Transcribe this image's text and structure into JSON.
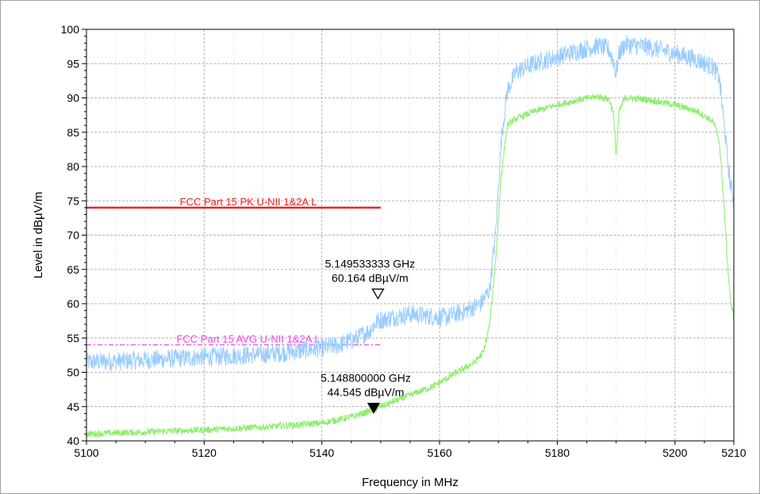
{
  "colors": {
    "background": "#ffffff",
    "frame_border": "#a0a0a0",
    "grid": "#b4b4b4",
    "peak_trace": "#99ccff",
    "avg_trace": "#88ee66",
    "pk_limit": "#ee2222",
    "avg_limit": "#ee44ee"
  },
  "chart_data": {
    "type": "line",
    "xlabel": "Frequency in MHz",
    "ylabel": "Level in dBµV/m",
    "xlim": [
      5100,
      5210
    ],
    "ylim": [
      40,
      100
    ],
    "x_ticks": [
      5100,
      5120,
      5140,
      5160,
      5180,
      5200,
      5210
    ],
    "y_ticks": [
      40,
      45,
      50,
      55,
      60,
      65,
      70,
      75,
      80,
      85,
      90,
      95,
      100
    ],
    "grid": true,
    "series": [
      {
        "role": "peak",
        "color": "#99ccff",
        "x": [
          5100,
          5105,
          5110,
          5115,
          5120,
          5125,
          5130,
          5135,
          5140,
          5143,
          5146,
          5148,
          5149.5,
          5152,
          5155,
          5158,
          5161,
          5164,
          5167,
          5168.5,
          5169.5,
          5170.5,
          5171.5,
          5173,
          5176,
          5180,
          5184,
          5187,
          5188.8,
          5189.5,
          5190,
          5190.5,
          5191.5,
          5195,
          5200,
          5204,
          5206.5,
          5207.5,
          5208.5,
          5209.3,
          5210
        ],
        "y": [
          51.5,
          51.6,
          51.8,
          52.0,
          52.2,
          52.4,
          52.6,
          53.0,
          53.5,
          54.0,
          55.0,
          56.0,
          57.5,
          58.0,
          58.5,
          58.2,
          58.0,
          58.8,
          60.0,
          62.0,
          70.0,
          84.0,
          91.0,
          93.8,
          95.0,
          96.0,
          97.0,
          97.6,
          97.0,
          95.5,
          93.5,
          96.5,
          97.8,
          97.5,
          96.5,
          95.5,
          94.5,
          93.0,
          85.0,
          78.0,
          75.0
        ]
      },
      {
        "role": "average",
        "color": "#88ee66",
        "x": [
          5100,
          5110,
          5120,
          5130,
          5140,
          5145,
          5148.8,
          5150,
          5153,
          5156,
          5159,
          5162,
          5164,
          5166,
          5167.5,
          5168.5,
          5169.5,
          5170.5,
          5171.5,
          5173,
          5176,
          5180,
          5184,
          5187,
          5188.8,
          5189.5,
          5190,
          5190.5,
          5191.5,
          5195,
          5200,
          5204,
          5206.5,
          5207.5,
          5208.3,
          5208.9,
          5209.5,
          5210
        ],
        "y": [
          41.0,
          41.3,
          41.6,
          42.0,
          42.6,
          43.5,
          44.5,
          45.0,
          46.0,
          47.0,
          48.0,
          49.5,
          50.5,
          51.5,
          53.0,
          57.0,
          66.0,
          79.0,
          86.0,
          87.0,
          88.0,
          89.0,
          89.8,
          90.2,
          89.8,
          88.0,
          81.5,
          88.0,
          90.0,
          89.8,
          89.0,
          88.0,
          86.5,
          84.0,
          75.0,
          66.0,
          60.0,
          58.0
        ]
      }
    ],
    "limit_lines": [
      {
        "label": "FCC Part 15  PK  U-NII 1&2A  L",
        "value": 74,
        "x": [
          5100,
          5150
        ],
        "color": "#ee2222",
        "style": "solid"
      },
      {
        "label": "FCC Part 15  AVG  U-NII 1&2A  L",
        "value": 54,
        "x": [
          5100,
          5150
        ],
        "color": "#ee44ee",
        "style": "dash-dot"
      }
    ],
    "markers": [
      {
        "symbol": "hollow-triangle-down",
        "x": 5149.533333,
        "y": 60.164,
        "freq_label": "5.149533333 GHz",
        "level_label": "60.164 dBµV/m"
      },
      {
        "symbol": "filled-triangle-down",
        "x": 5148.8,
        "y": 44.545,
        "freq_label": "5.148800000 GHz",
        "level_label": "44.545 dBµV/m"
      }
    ]
  }
}
